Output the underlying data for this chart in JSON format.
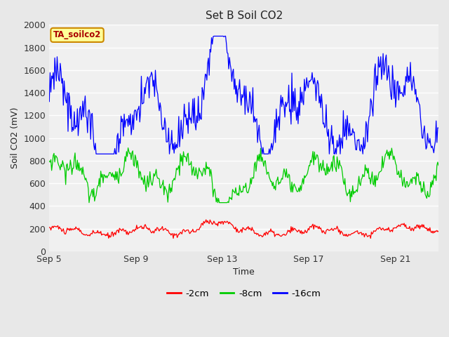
{
  "title": "Set B Soil CO2",
  "xlabel": "Time",
  "ylabel": "Soil CO2 (mV)",
  "ylim": [
    0,
    2000
  ],
  "yticks": [
    0,
    200,
    400,
    600,
    800,
    1000,
    1200,
    1400,
    1600,
    1800,
    2000
  ],
  "xtick_labels": [
    "Sep 5",
    "Sep 9",
    "Sep 13",
    "Sep 17",
    "Sep 21"
  ],
  "xtick_positions": [
    0,
    4,
    8,
    12,
    16
  ],
  "fig_bg_color": "#e8e8e8",
  "plot_bg_color": "#f0f0f0",
  "legend_entries": [
    "-2cm",
    "-8cm",
    "-16cm"
  ],
  "legend_colors": [
    "#ff0000",
    "#00cc00",
    "#0000ff"
  ],
  "line_colors": [
    "#ff0000",
    "#00cc00",
    "#0000ff"
  ],
  "annotation_text": "TA_soilco2",
  "annotation_bg": "#ffff99",
  "annotation_border": "#cc8800",
  "title_fontsize": 11,
  "axis_fontsize": 9,
  "tick_fontsize": 9
}
